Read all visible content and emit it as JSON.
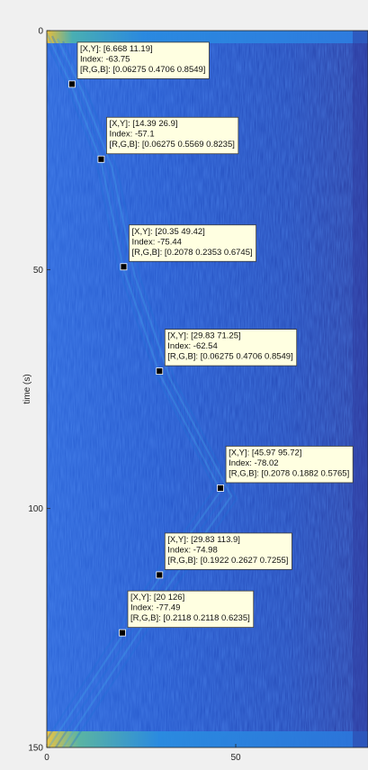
{
  "chart_data": {
    "type": "heatmap",
    "title": "",
    "xlabel": "",
    "ylabel": "time (s)",
    "xlim": [
      0,
      85
    ],
    "ylim": [
      0,
      150
    ],
    "y_reversed": true,
    "x_ticks": [
      0,
      50
    ],
    "y_ticks": [
      0,
      50,
      100,
      150
    ],
    "colormap": "parula",
    "datatips": [
      {
        "x": 6.668,
        "y": 11.19,
        "xy_text": "[X,Y]: [6.668 11.19]",
        "index_text": "Index: -63.75",
        "rgb_text": "[R,G,B]: [0.06275 0.4706 0.8549]"
      },
      {
        "x": 14.39,
        "y": 26.9,
        "xy_text": "[X,Y]: [14.39 26.9]",
        "index_text": "Index: -57.1",
        "rgb_text": "[R,G,B]: [0.06275 0.5569 0.8235]"
      },
      {
        "x": 20.35,
        "y": 49.42,
        "xy_text": "[X,Y]: [20.35 49.42]",
        "index_text": "Index: -75.44",
        "rgb_text": "[R,G,B]: [0.2078 0.2353 0.6745]"
      },
      {
        "x": 29.83,
        "y": 71.25,
        "xy_text": "[X,Y]: [29.83 71.25]",
        "index_text": "Index: -62.54",
        "rgb_text": "[R,G,B]: [0.06275 0.4706 0.8549]"
      },
      {
        "x": 45.97,
        "y": 95.72,
        "xy_text": "[X,Y]: [45.97 95.72]",
        "index_text": "Index: -78.02",
        "rgb_text": "[R,G,B]: [0.2078 0.1882 0.5765]"
      },
      {
        "x": 29.83,
        "y": 113.9,
        "xy_text": "[X,Y]: [29.83 113.9]",
        "index_text": "Index: -74.98",
        "rgb_text": "[R,G,B]: [0.1922 0.2627 0.7255]"
      },
      {
        "x": 20,
        "y": 126,
        "xy_text": "[X,Y]: [20 126]",
        "index_text": "Index: -77.49",
        "rgb_text": "[R,G,B]: [0.2118 0.2118 0.6235]"
      }
    ]
  }
}
